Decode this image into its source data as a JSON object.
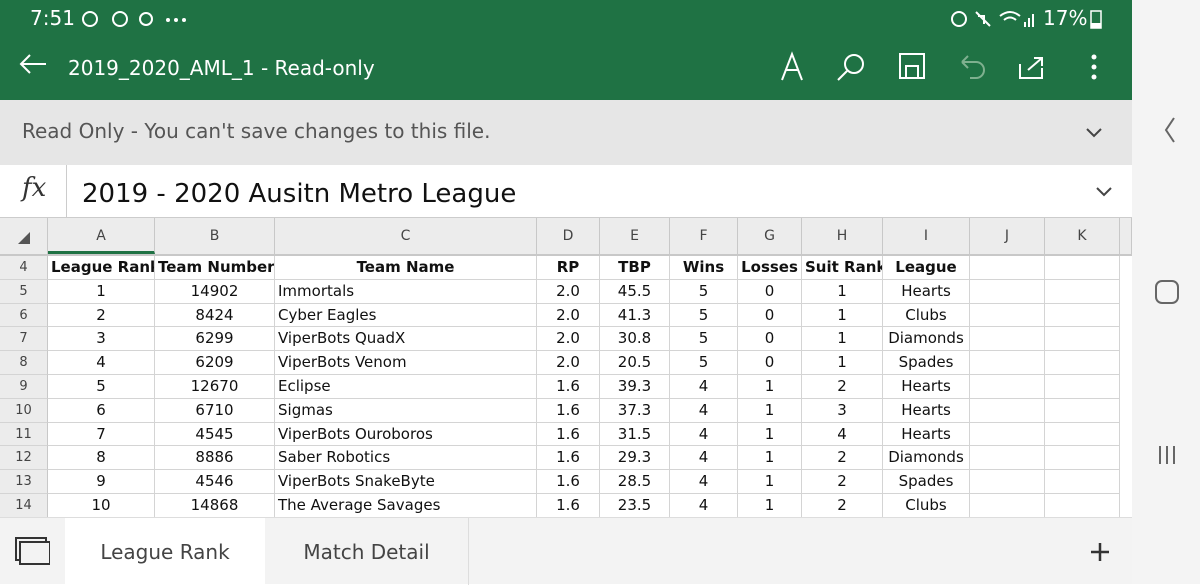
{
  "status": {
    "time": "7:51",
    "battery": "17%"
  },
  "toolbar": {
    "title": "2019_2020_AML_1 - Read-only"
  },
  "banner": {
    "text": "Read Only - You can't save changes to this file."
  },
  "formula": {
    "icon": "fx",
    "text": "2019 - 2020 Ausitn Metro League"
  },
  "sheet": {
    "columns": [
      "A",
      "B",
      "C",
      "D",
      "E",
      "F",
      "G",
      "H",
      "I",
      "J",
      "K"
    ],
    "row_numbers": [
      4,
      5,
      6,
      7,
      8,
      9,
      10,
      11,
      12,
      13,
      14
    ],
    "rows": [
      [
        "League Rank",
        "Team Number",
        "Team Name",
        "RP",
        "TBP",
        "Wins",
        "Losses",
        "Suit Rank",
        "League"
      ],
      [
        "1",
        "14902",
        "Immortals",
        "2.0",
        "45.5",
        "5",
        "0",
        "1",
        "Hearts"
      ],
      [
        "2",
        "8424",
        "Cyber Eagles",
        "2.0",
        "41.3",
        "5",
        "0",
        "1",
        "Clubs"
      ],
      [
        "3",
        "6299",
        "ViperBots QuadX",
        "2.0",
        "30.8",
        "5",
        "0",
        "1",
        "Diamonds"
      ],
      [
        "4",
        "6209",
        "ViperBots Venom",
        "2.0",
        "20.5",
        "5",
        "0",
        "1",
        "Spades"
      ],
      [
        "5",
        "12670",
        "Eclipse",
        "1.6",
        "39.3",
        "4",
        "1",
        "2",
        "Hearts"
      ],
      [
        "6",
        "6710",
        "Sigmas",
        "1.6",
        "37.3",
        "4",
        "1",
        "3",
        "Hearts"
      ],
      [
        "7",
        "4545",
        "ViperBots Ouroboros",
        "1.6",
        "31.5",
        "4",
        "1",
        "4",
        "Hearts"
      ],
      [
        "8",
        "8886",
        "Saber Robotics",
        "1.6",
        "29.3",
        "4",
        "1",
        "2",
        "Diamonds"
      ],
      [
        "9",
        "4546",
        "ViperBots SnakeByte",
        "1.6",
        "28.5",
        "4",
        "1",
        "2",
        "Spades"
      ],
      [
        "10",
        "14868",
        "The Average Savages",
        "1.6",
        "23.5",
        "4",
        "1",
        "2",
        "Clubs"
      ]
    ]
  },
  "tabs": [
    "League Rank",
    "Match Detail"
  ]
}
